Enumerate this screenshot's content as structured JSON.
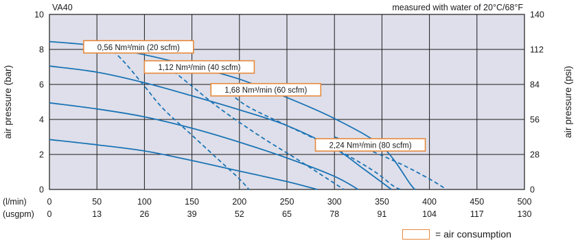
{
  "chart_data": {
    "type": "line",
    "title": "VA40",
    "note": "measured with water of 20°C/68°F",
    "ylabel_left": "air pressure (bar)",
    "ylabel_right": "air pressure (psi)",
    "x_row_labels": [
      "(l/min)",
      "(usgpm)"
    ],
    "x_ticks_lmin": [
      "0",
      "50",
      "100",
      "150",
      "200",
      "250",
      "300",
      "350",
      "400",
      "450",
      "500"
    ],
    "x_ticks_usgpm": [
      "0",
      "13",
      "26",
      "39",
      "52",
      "65",
      "78",
      "91",
      "104",
      "117",
      "130"
    ],
    "y_ticks_bar": [
      "0",
      "2",
      "4",
      "6",
      "8",
      "10"
    ],
    "y_ticks_psi": [
      "0",
      "28",
      "56",
      "84",
      "112",
      "140"
    ],
    "xlim": [
      0,
      500
    ],
    "ylim": [
      0,
      10
    ],
    "grid": true,
    "colors": {
      "plot_bg": "#dedfea",
      "curve": "#1a73b5",
      "grid": "#1a1a1a",
      "callout_border": "#e8893a"
    },
    "series": [
      {
        "style": "solid",
        "points": [
          [
            0,
            8.45
          ],
          [
            50,
            8.2
          ],
          [
            100,
            7.7
          ],
          [
            150,
            7.05
          ],
          [
            200,
            6.3
          ],
          [
            250,
            5.25
          ],
          [
            300,
            4.05
          ],
          [
            350,
            2.45
          ],
          [
            380,
            0.3
          ],
          [
            385,
            0
          ]
        ]
      },
      {
        "style": "solid",
        "points": [
          [
            0,
            7.05
          ],
          [
            50,
            6.7
          ],
          [
            100,
            6.1
          ],
          [
            150,
            5.35
          ],
          [
            200,
            4.55
          ],
          [
            250,
            3.65
          ],
          [
            300,
            2.35
          ],
          [
            330,
            1.2
          ],
          [
            360,
            0
          ]
        ]
      },
      {
        "style": "solid",
        "points": [
          [
            0,
            4.95
          ],
          [
            50,
            4.6
          ],
          [
            100,
            4.15
          ],
          [
            150,
            3.5
          ],
          [
            200,
            2.7
          ],
          [
            250,
            1.8
          ],
          [
            300,
            0.75
          ],
          [
            325,
            0
          ]
        ]
      },
      {
        "style": "solid",
        "points": [
          [
            0,
            2.85
          ],
          [
            50,
            2.55
          ],
          [
            100,
            2.2
          ],
          [
            150,
            1.65
          ],
          [
            200,
            1.05
          ],
          [
            250,
            0.45
          ],
          [
            275,
            0.1
          ],
          [
            282,
            0
          ]
        ]
      },
      {
        "style": "dashed",
        "points": [
          [
            62,
            8.2
          ],
          [
            80,
            7.2
          ],
          [
            100,
            5.9
          ],
          [
            120,
            4.6
          ],
          [
            150,
            3.1
          ],
          [
            180,
            1.6
          ],
          [
            200,
            0.6
          ],
          [
            210,
            0
          ]
        ]
      },
      {
        "style": "dashed",
        "points": [
          [
            125,
            7.0
          ],
          [
            150,
            5.9
          ],
          [
            180,
            4.6
          ],
          [
            220,
            3.1
          ],
          [
            260,
            1.75
          ],
          [
            290,
            0.7
          ],
          [
            310,
            0
          ]
        ]
      },
      {
        "style": "dashed",
        "points": [
          [
            190,
            5.5
          ],
          [
            210,
            4.7
          ],
          [
            250,
            3.65
          ],
          [
            300,
            2.35
          ],
          [
            340,
            1.1
          ],
          [
            362,
            0.2
          ],
          [
            370,
            0
          ]
        ]
      },
      {
        "style": "dashed",
        "points": [
          [
            300,
            3.0
          ],
          [
            330,
            2.4
          ],
          [
            370,
            1.45
          ],
          [
            400,
            0.6
          ],
          [
            418,
            0
          ]
        ]
      }
    ],
    "callouts": [
      {
        "label": "0,56 Nm³/min (20 scfm)",
        "x": 36,
        "y": 8.5
      },
      {
        "label": "1,12 Nm³/min (40 scfm)",
        "x": 100,
        "y": 7.35
      },
      {
        "label": "1,68 Nm³/min (60 scfm)",
        "x": 170,
        "y": 6.05
      },
      {
        "label": "2,24 Nm³/min (80 scfm)",
        "x": 280,
        "y": 2.9
      }
    ]
  },
  "legend": {
    "text": "= air consumption"
  }
}
